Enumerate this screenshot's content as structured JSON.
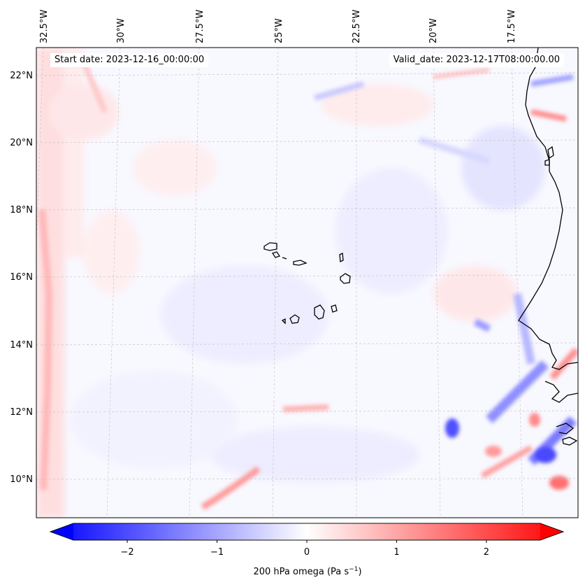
{
  "header": {
    "start_date": "Start date: 2023-12-16_00:00:00",
    "valid_date": "Valid_date: 2023-12-17T08:00:00.00"
  },
  "map": {
    "lon_labels": [
      "32.5°W",
      "30°W",
      "27.5°W",
      "25°W",
      "22.5°W",
      "20°W",
      "17.5°W"
    ],
    "lat_labels": [
      "22°N",
      "20°N",
      "18°N",
      "16°N",
      "14°N",
      "12°N",
      "10°N"
    ],
    "gridlines": "dashed",
    "field": "200 hPa omega",
    "feature_colors": {
      "coastline": "#000000",
      "ascent": "#3b3bff",
      "descent": "#ff5a5a",
      "neutral": "#f8f8ff"
    }
  },
  "colorbar": {
    "ticks": [
      "−2",
      "−1",
      "0",
      "1",
      "2"
    ],
    "tick_values": [
      -2,
      -1,
      0,
      1,
      2
    ],
    "range": [
      -2.6,
      2.6
    ],
    "label": "200 hPa omega (Pa s",
    "label_sup": "−1",
    "label_end": ")",
    "cmap_low": "#0000ff",
    "cmap_mid": "#ffffff",
    "cmap_high": "#ff0000",
    "extend": "both"
  }
}
